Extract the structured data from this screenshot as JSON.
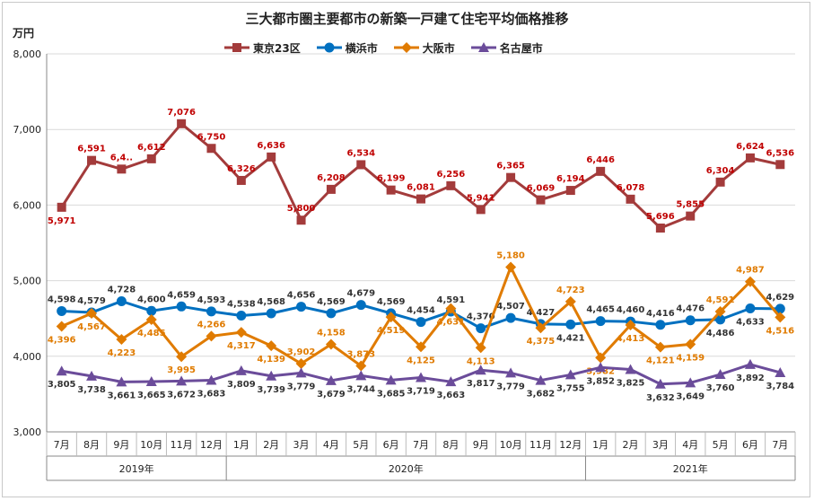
{
  "chart_data": {
    "type": "line",
    "title": "三大都市圏主要都市の新築一戸建て住宅平均価格推移",
    "ylabel": "万円",
    "ylim": [
      3000,
      8000
    ],
    "yticks": [
      "3,000",
      "4,000",
      "5,000",
      "6,000",
      "7,000",
      "8,000"
    ],
    "grid": true,
    "legend_position": "top",
    "categories": [
      "7月",
      "8月",
      "9月",
      "10月",
      "11月",
      "12月",
      "1月",
      "2月",
      "3月",
      "4月",
      "5月",
      "6月",
      "7月",
      "8月",
      "9月",
      "10月",
      "11月",
      "12月",
      "1月",
      "2月",
      "3月",
      "4月",
      "5月",
      "6月",
      "7月"
    ],
    "year_groups": [
      {
        "label": "2019年",
        "start": 0,
        "end": 5
      },
      {
        "label": "2020年",
        "start": 6,
        "end": 17
      },
      {
        "label": "2021年",
        "start": 18,
        "end": 24
      }
    ],
    "series": [
      {
        "name": "東京23区",
        "color": "#a33b3b",
        "label_color": "#c00000",
        "marker": "square",
        "values": [
          5971,
          6591,
          6476,
          6612,
          7076,
          6750,
          6326,
          6636,
          5800,
          6208,
          6534,
          6199,
          6081,
          6256,
          5941,
          6365,
          6069,
          6194,
          6446,
          6078,
          5696,
          5855,
          6304,
          6624,
          6536
        ],
        "labels": [
          "5,971",
          "6,591",
          "6,4..",
          "6,612",
          "7,076",
          "6,750",
          "6,326",
          "6,636",
          "5,800",
          "6,208",
          "6,534",
          "6,199",
          "6,081",
          "6,256",
          "5,941",
          "6,365",
          "6,069",
          "6,194",
          "6,446",
          "6,078",
          "5,696",
          "5,855",
          "6,304",
          "6,624",
          "6,536"
        ],
        "label_pos": [
          "below",
          "above",
          "above",
          "above",
          "above",
          "above",
          "above",
          "above",
          "above",
          "above",
          "above",
          "above",
          "above",
          "above",
          "above",
          "above",
          "above",
          "above",
          "above",
          "above",
          "above",
          "above",
          "above",
          "above",
          "above"
        ]
      },
      {
        "name": "横浜市",
        "color": "#0070c0",
        "label_color": "#333333",
        "marker": "circle",
        "values": [
          4598,
          4579,
          4728,
          4600,
          4659,
          4593,
          4538,
          4568,
          4656,
          4569,
          4679,
          4569,
          4454,
          4591,
          4370,
          4507,
          4427,
          4421,
          4465,
          4460,
          4416,
          4476,
          4486,
          4633,
          4629
        ],
        "labels": [
          "4,598",
          "4,579",
          "4,728",
          "4,600",
          "4,659",
          "4,593",
          "4,538",
          "4,568",
          "4,656",
          "4,569",
          "4,679",
          "4,569",
          "4,454",
          "4,591",
          "4,370",
          "4,507",
          "4,427",
          "4,421",
          "4,465",
          "4,460",
          "4,416",
          "4,476",
          "4,486",
          "4,633",
          "4,629"
        ],
        "label_pos": [
          "above",
          "above",
          "above",
          "above",
          "above",
          "above",
          "above",
          "above",
          "above",
          "above",
          "above",
          "above",
          "above",
          "above",
          "above",
          "above",
          "above",
          "below",
          "above",
          "above",
          "above",
          "above",
          "below",
          "below",
          "above"
        ]
      },
      {
        "name": "大阪市",
        "color": "#e07b00",
        "label_color": "#e07b00",
        "marker": "diamond",
        "values": [
          4396,
          4567,
          4223,
          4485,
          3995,
          4266,
          4317,
          4139,
          3902,
          4158,
          3873,
          4519,
          4125,
          4631,
          4113,
          5180,
          4375,
          4723,
          3982,
          4413,
          4121,
          4159,
          4591,
          4987,
          4516
        ],
        "labels": [
          "4,396",
          "4,567",
          "4,223",
          "4,485",
          "3,995",
          "4,266",
          "4,317",
          "4,139",
          "3,902",
          "4,158",
          "3,873",
          "4,519",
          "4,125",
          "4,631",
          "4,113",
          "5,180",
          "4,375",
          "4,723",
          "3,982",
          "4,413",
          "4,121",
          "4,159",
          "4,591",
          "4,987",
          "4,516"
        ],
        "label_pos": [
          "below",
          "below",
          "below",
          "below",
          "below",
          "above",
          "below",
          "below",
          "above",
          "above",
          "above",
          "below",
          "below",
          "below",
          "below",
          "above",
          "below",
          "above",
          "below",
          "below",
          "below",
          "below",
          "above",
          "above",
          "below"
        ]
      },
      {
        "name": "名古屋市",
        "color": "#6b4c9a",
        "label_color": "#333333",
        "marker": "triangle",
        "values": [
          3805,
          3738,
          3661,
          3665,
          3672,
          3683,
          3809,
          3739,
          3779,
          3679,
          3744,
          3685,
          3719,
          3663,
          3817,
          3779,
          3682,
          3755,
          3852,
          3825,
          3632,
          3649,
          3760,
          3892,
          3784
        ],
        "labels": [
          "3,805",
          "3,738",
          "3,661",
          "3,665",
          "3,672",
          "3,683",
          "3,809",
          "3,739",
          "3,779",
          "3,679",
          "3,744",
          "3,685",
          "3,719",
          "3,663",
          "3,817",
          "3,779",
          "3,682",
          "3,755",
          "3,852",
          "3,825",
          "3,632",
          "3,649",
          "3,760",
          "3,892",
          "3,784"
        ],
        "label_pos": [
          "below",
          "below",
          "below",
          "below",
          "below",
          "below",
          "below",
          "below",
          "below",
          "below",
          "below",
          "below",
          "below",
          "below",
          "below",
          "below",
          "below",
          "below",
          "below",
          "below",
          "below",
          "below",
          "below",
          "below",
          "below"
        ]
      }
    ]
  }
}
